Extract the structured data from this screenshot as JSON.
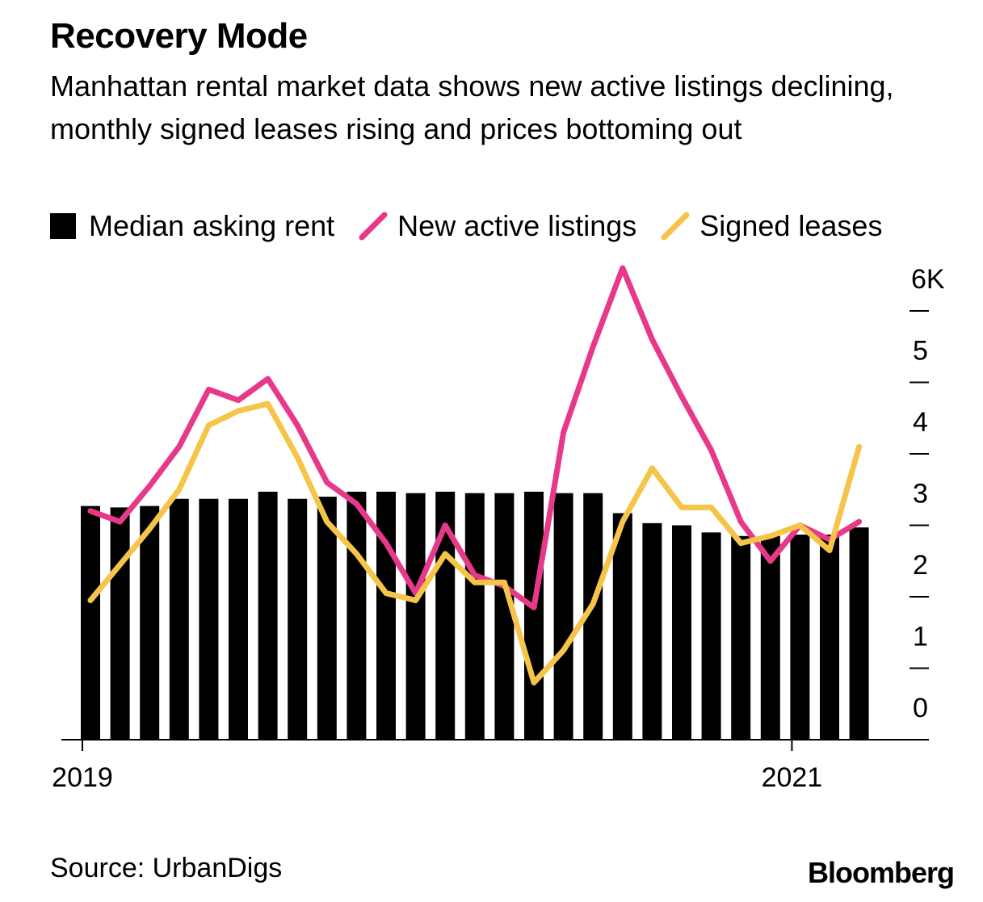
{
  "title": "Recovery Mode",
  "subtitle": "Manhattan rental market data shows new active listings declining, monthly signed leases rising and prices bottoming out",
  "legend": [
    {
      "label": "Median asking rent",
      "kind": "box",
      "color": "#000000"
    },
    {
      "label": "New active listings",
      "kind": "line",
      "color": "#e8388a"
    },
    {
      "label": "Signed leases",
      "kind": "line",
      "color": "#f5c54a"
    }
  ],
  "source": "Source: UrbanDigs",
  "brand": "Bloomberg",
  "chart_data": {
    "type": "bar",
    "x": [
      "2019-01",
      "2019-02",
      "2019-03",
      "2019-04",
      "2019-05",
      "2019-06",
      "2019-07",
      "2019-08",
      "2019-09",
      "2019-10",
      "2019-11",
      "2019-12",
      "2020-01",
      "2020-02",
      "2020-03",
      "2020-04",
      "2020-05",
      "2020-06",
      "2020-07",
      "2020-08",
      "2020-09",
      "2020-10",
      "2020-11",
      "2020-12",
      "2021-01",
      "2021-02",
      "2021-03"
    ],
    "x_tick_labels": [
      {
        "x": "2019-01",
        "label": "2019"
      },
      {
        "x": "2021-01",
        "label": "2021"
      }
    ],
    "y_tick_labels": [
      "0",
      "1",
      "2",
      "3",
      "4",
      "5",
      "6K"
    ],
    "ylim": [
      0,
      6.5
    ],
    "grid": false,
    "legend_position": "top",
    "series": [
      {
        "name": "Median asking rent",
        "kind": "bar",
        "color": "#000000",
        "values": [
          3.27,
          3.25,
          3.27,
          3.37,
          3.37,
          3.37,
          3.47,
          3.37,
          3.4,
          3.47,
          3.47,
          3.45,
          3.47,
          3.45,
          3.45,
          3.47,
          3.45,
          3.45,
          3.17,
          3.03,
          3.0,
          2.9,
          2.85,
          2.85,
          2.87,
          2.87,
          2.97
        ]
      },
      {
        "name": "New active listings",
        "kind": "line",
        "color": "#e8388a",
        "values": [
          3.2,
          3.05,
          3.55,
          4.1,
          4.9,
          4.75,
          5.05,
          4.4,
          3.6,
          3.3,
          2.75,
          2.05,
          3.0,
          2.3,
          2.15,
          1.85,
          4.3,
          5.5,
          6.6,
          5.6,
          4.8,
          4.05,
          3.05,
          2.5,
          3.0,
          2.8,
          3.05
        ]
      },
      {
        "name": "Signed leases",
        "kind": "line",
        "color": "#f5c54a",
        "values": [
          1.95,
          2.45,
          2.95,
          3.5,
          4.4,
          4.6,
          4.7,
          3.95,
          3.05,
          2.6,
          2.05,
          1.95,
          2.6,
          2.2,
          2.2,
          0.8,
          1.25,
          1.9,
          3.05,
          3.8,
          3.25,
          3.25,
          2.75,
          2.85,
          3.0,
          2.65,
          4.1
        ]
      }
    ]
  }
}
